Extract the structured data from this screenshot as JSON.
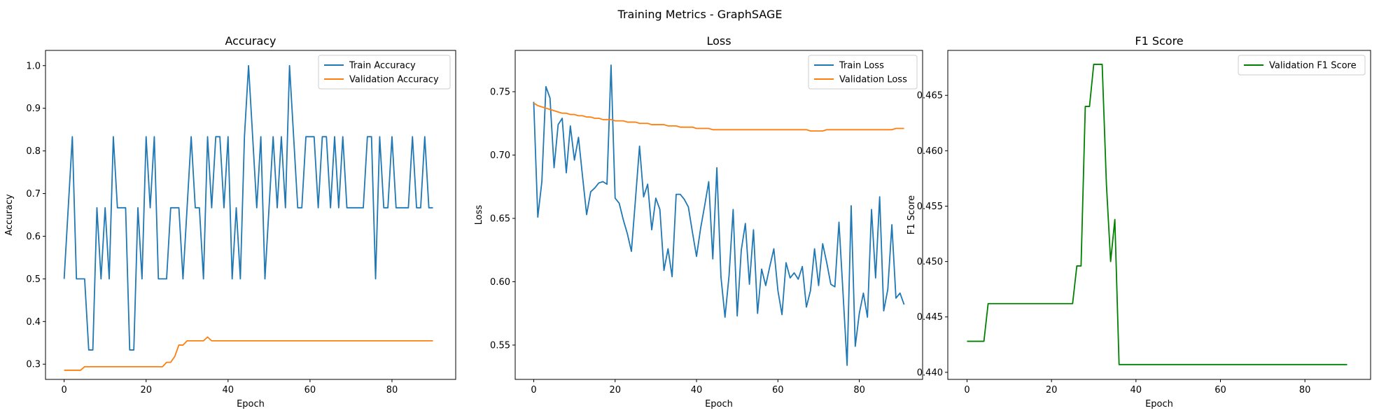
{
  "figure": {
    "title": "Training Metrics - GraphSAGE"
  },
  "chart_data": [
    {
      "type": "line",
      "title": "Accuracy",
      "xlabel": "Epoch",
      "ylabel": "Accuracy",
      "xlim": [
        -4.55,
        95.55
      ],
      "ylim": [
        0.2643,
        1.0357
      ],
      "xticks": [
        0,
        20,
        40,
        60,
        80
      ],
      "yticks": [
        0.3,
        0.4,
        0.5,
        0.6,
        0.7,
        0.8,
        0.9,
        1.0
      ],
      "yticklabels": [
        "0.3",
        "0.4",
        "0.5",
        "0.6",
        "0.7",
        "0.8",
        "0.9",
        "1.0"
      ],
      "grid": false,
      "legend": "upper right",
      "series": [
        {
          "name": "Train Accuracy",
          "color": "#1f77b4",
          "values": [
            0.5,
            0.6667,
            0.8333,
            0.5,
            0.5,
            0.5,
            0.3333,
            0.3333,
            0.6667,
            0.5,
            0.6667,
            0.5,
            0.8333,
            0.6667,
            0.6667,
            0.6667,
            0.3333,
            0.3333,
            0.6667,
            0.5,
            0.8333,
            0.6667,
            0.8333,
            0.5,
            0.5,
            0.5,
            0.6667,
            0.6667,
            0.6667,
            0.5,
            0.6667,
            0.8333,
            0.6667,
            0.6667,
            0.5,
            0.8333,
            0.6667,
            0.8333,
            0.8333,
            0.6667,
            0.8333,
            0.5,
            0.6667,
            0.5,
            0.8333,
            1.0,
            0.8333,
            0.6667,
            0.8333,
            0.5,
            0.6667,
            0.8333,
            0.6667,
            0.8333,
            0.6667,
            1.0,
            0.8333,
            0.6667,
            0.6667,
            0.8333,
            0.8333,
            0.8333,
            0.6667,
            0.8333,
            0.8333,
            0.6667,
            0.8333,
            0.6667,
            0.8333,
            0.6667,
            0.6667,
            0.6667,
            0.6667,
            0.6667,
            0.8333,
            0.8333,
            0.5,
            0.8333,
            0.6667,
            0.6667,
            0.8333,
            0.6667,
            0.6667,
            0.6667,
            0.6667,
            0.8333,
            0.6667,
            0.6667,
            0.8333,
            0.6667,
            0.6667
          ]
        },
        {
          "name": "Validation Accuracy",
          "color": "#ff7f0e",
          "values": [
            0.2857,
            0.2857,
            0.2857,
            0.2857,
            0.2857,
            0.2941,
            0.2941,
            0.2941,
            0.2941,
            0.2941,
            0.2941,
            0.2941,
            0.2941,
            0.2941,
            0.2941,
            0.2941,
            0.2941,
            0.2941,
            0.2941,
            0.2941,
            0.2941,
            0.2941,
            0.2941,
            0.2941,
            0.2941,
            0.3043,
            0.3043,
            0.3182,
            0.3448,
            0.3448,
            0.3548,
            0.3548,
            0.3548,
            0.3548,
            0.3548,
            0.3636,
            0.3548,
            0.3548,
            0.3548,
            0.3548,
            0.3548,
            0.3548,
            0.3548,
            0.3548,
            0.3548,
            0.3548,
            0.3548,
            0.3548,
            0.3548,
            0.3548,
            0.3548,
            0.3548,
            0.3548,
            0.3548,
            0.3548,
            0.3548,
            0.3548,
            0.3548,
            0.3548,
            0.3548,
            0.3548,
            0.3548,
            0.3548,
            0.3548,
            0.3548,
            0.3548,
            0.3548,
            0.3548,
            0.3548,
            0.3548,
            0.3548,
            0.3548,
            0.3548,
            0.3548,
            0.3548,
            0.3548,
            0.3548,
            0.3548,
            0.3548,
            0.3548,
            0.3548,
            0.3548,
            0.3548,
            0.3548,
            0.3548,
            0.3548,
            0.3548,
            0.3548,
            0.3548,
            0.3548,
            0.3548
          ]
        }
      ]
    },
    {
      "type": "line",
      "title": "Loss",
      "xlabel": "Epoch",
      "ylabel": "Loss",
      "xlim": [
        -4.55,
        95.55
      ],
      "ylim": [
        0.5229,
        0.7826
      ],
      "xticks": [
        0,
        20,
        40,
        60,
        80
      ],
      "yticks": [
        0.55,
        0.6,
        0.65,
        0.7,
        0.75
      ],
      "yticklabels": [
        "0.55",
        "0.60",
        "0.65",
        "0.70",
        "0.75"
      ],
      "grid": false,
      "legend": "upper right",
      "series": [
        {
          "name": "Train Loss",
          "color": "#1f77b4",
          "values": [
            0.742,
            0.651,
            0.679,
            0.754,
            0.745,
            0.69,
            0.724,
            0.729,
            0.686,
            0.723,
            0.696,
            0.714,
            0.683,
            0.653,
            0.671,
            0.674,
            0.678,
            0.679,
            0.677,
            0.771,
            0.666,
            0.662,
            0.649,
            0.638,
            0.624,
            0.665,
            0.707,
            0.667,
            0.677,
            0.641,
            0.666,
            0.657,
            0.609,
            0.626,
            0.604,
            0.669,
            0.669,
            0.665,
            0.659,
            0.639,
            0.62,
            0.642,
            0.66,
            0.679,
            0.618,
            0.69,
            0.604,
            0.572,
            0.605,
            0.657,
            0.573,
            0.625,
            0.646,
            0.598,
            0.641,
            0.575,
            0.61,
            0.597,
            0.612,
            0.626,
            0.593,
            0.574,
            0.615,
            0.603,
            0.607,
            0.602,
            0.612,
            0.58,
            0.593,
            0.626,
            0.597,
            0.63,
            0.615,
            0.598,
            0.596,
            0.647,
            0.591,
            0.534,
            0.66,
            0.549,
            0.575,
            0.591,
            0.572,
            0.657,
            0.603,
            0.667,
            0.577,
            0.594,
            0.645,
            0.587,
            0.591,
            0.582
          ]
        },
        {
          "name": "Validation Loss",
          "color": "#ff7f0e",
          "values": [
            0.741,
            0.739,
            0.738,
            0.737,
            0.736,
            0.735,
            0.734,
            0.733,
            0.733,
            0.732,
            0.732,
            0.731,
            0.731,
            0.73,
            0.73,
            0.729,
            0.729,
            0.728,
            0.728,
            0.728,
            0.727,
            0.727,
            0.727,
            0.726,
            0.726,
            0.726,
            0.725,
            0.725,
            0.725,
            0.724,
            0.724,
            0.724,
            0.724,
            0.723,
            0.723,
            0.723,
            0.722,
            0.722,
            0.722,
            0.722,
            0.721,
            0.721,
            0.721,
            0.721,
            0.72,
            0.72,
            0.72,
            0.72,
            0.72,
            0.72,
            0.72,
            0.72,
            0.72,
            0.72,
            0.72,
            0.72,
            0.72,
            0.72,
            0.72,
            0.72,
            0.72,
            0.72,
            0.72,
            0.72,
            0.72,
            0.72,
            0.72,
            0.72,
            0.719,
            0.719,
            0.719,
            0.719,
            0.72,
            0.72,
            0.72,
            0.72,
            0.72,
            0.72,
            0.72,
            0.72,
            0.72,
            0.72,
            0.72,
            0.72,
            0.72,
            0.72,
            0.72,
            0.72,
            0.72,
            0.721,
            0.721,
            0.721
          ]
        }
      ]
    },
    {
      "type": "line",
      "title": "F1 Score",
      "xlabel": "Epoch",
      "ylabel": "F1 Score",
      "xlim": [
        -4.55,
        95.55
      ],
      "ylim": [
        0.43936,
        0.46906
      ],
      "xticks": [
        0,
        20,
        40,
        60,
        80
      ],
      "yticks": [
        0.44,
        0.445,
        0.45,
        0.455,
        0.46,
        0.465
      ],
      "yticklabels": [
        "0.440",
        "0.445",
        "0.450",
        "0.455",
        "0.460",
        "0.465"
      ],
      "grid": false,
      "legend": "upper right",
      "series": [
        {
          "name": "Validation F1 Score",
          "color": "#008000",
          "values": [
            0.4428,
            0.4428,
            0.4428,
            0.4428,
            0.4428,
            0.4462,
            0.4462,
            0.4462,
            0.4462,
            0.4462,
            0.4462,
            0.4462,
            0.4462,
            0.4462,
            0.4462,
            0.4462,
            0.4462,
            0.4462,
            0.4462,
            0.4462,
            0.4462,
            0.4462,
            0.4462,
            0.4462,
            0.4462,
            0.4462,
            0.4496,
            0.4496,
            0.464,
            0.464,
            0.4678,
            0.4678,
            0.4678,
            0.457,
            0.45,
            0.4538,
            0.4407,
            0.4407,
            0.4407,
            0.4407,
            0.4407,
            0.4407,
            0.4407,
            0.4407,
            0.4407,
            0.4407,
            0.4407,
            0.4407,
            0.4407,
            0.4407,
            0.4407,
            0.4407,
            0.4407,
            0.4407,
            0.4407,
            0.4407,
            0.4407,
            0.4407,
            0.4407,
            0.4407,
            0.4407,
            0.4407,
            0.4407,
            0.4407,
            0.4407,
            0.4407,
            0.4407,
            0.4407,
            0.4407,
            0.4407,
            0.4407,
            0.4407,
            0.4407,
            0.4407,
            0.4407,
            0.4407,
            0.4407,
            0.4407,
            0.4407,
            0.4407,
            0.4407,
            0.4407,
            0.4407,
            0.4407,
            0.4407,
            0.4407,
            0.4407,
            0.4407,
            0.4407,
            0.4407,
            0.4407
          ]
        }
      ]
    }
  ]
}
